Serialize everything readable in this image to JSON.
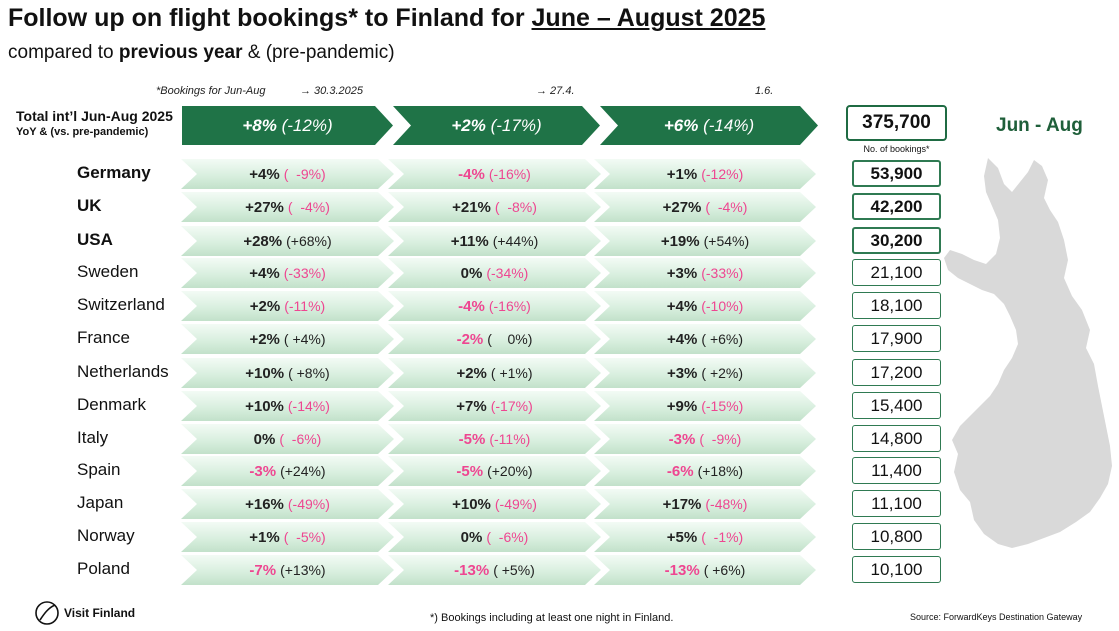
{
  "title": {
    "prefix": "Follow up on flight bookings* to Finland for ",
    "period": "June – August 2025"
  },
  "subtitle": {
    "pre": "compared to ",
    "bold": "previous year",
    "post": " & (pre-pandemic)"
  },
  "date_notes": [
    "*Bookings for Jun-Aug",
    "→ 30.3.2025",
    "→ 27.4.",
    "1.6."
  ],
  "total_label": {
    "line1": "Total int’l Jun-Aug 2025",
    "line2": "YoY & (vs. pre-pandemic)"
  },
  "bookings_label": "No. of bookings*",
  "season_label": "Jun - Aug",
  "footnote": "*) Bookings including at least one night in Finland.",
  "source": "Source: ForwardKeys Destination Gateway",
  "logo_text": "Visit Finland",
  "colors": {
    "dark_green": "#1f7347",
    "negative_pink": "#ee4691",
    "box_border": "#2f7a52",
    "map_gray": "#d9d9d9"
  },
  "chart_data": {
    "type": "table",
    "periods": [
      "30.3.2025",
      "27.4.",
      "1.6."
    ],
    "total": {
      "yoy": [
        8,
        2,
        6
      ],
      "pre_pandemic": [
        -12,
        -17,
        -14
      ],
      "yoy_text": [
        "+8%",
        "+2%",
        "+6%"
      ],
      "pre_text": [
        "(-12%)",
        "(-17%)",
        "(-14%)"
      ],
      "bookings": "375,700"
    },
    "rows": [
      {
        "country": "Germany",
        "bold": true,
        "bookings": "53,900",
        "cells": [
          {
            "yoy": "+4%",
            "pre": "(  -9%)"
          },
          {
            "yoy": "-4%",
            "pre": "(-16%)"
          },
          {
            "yoy": "+1%",
            "pre": "(-12%)"
          }
        ]
      },
      {
        "country": "UK",
        "bold": true,
        "bookings": "42,200",
        "cells": [
          {
            "yoy": "+27%",
            "pre": "(  -4%)"
          },
          {
            "yoy": "+21%",
            "pre": "(  -8%)"
          },
          {
            "yoy": "+27%",
            "pre": "(  -4%)"
          }
        ]
      },
      {
        "country": "USA",
        "bold": true,
        "bookings": "30,200",
        "cells": [
          {
            "yoy": "+28%",
            "pre": "(+68%)"
          },
          {
            "yoy": "+11%",
            "pre": "(+44%)"
          },
          {
            "yoy": "+19%",
            "pre": "(+54%)"
          }
        ]
      },
      {
        "country": "Sweden",
        "bold": false,
        "bookings": "21,100",
        "cells": [
          {
            "yoy": "+4%",
            "pre": "(-33%)"
          },
          {
            "yoy": "0%",
            "pre": "(-34%)"
          },
          {
            "yoy": "+3%",
            "pre": "(-33%)"
          }
        ]
      },
      {
        "country": "Switzerland",
        "bold": false,
        "bookings": "18,100",
        "cells": [
          {
            "yoy": "+2%",
            "pre": "(-11%)"
          },
          {
            "yoy": "-4%",
            "pre": "(-16%)"
          },
          {
            "yoy": "+4%",
            "pre": "(-10%)"
          }
        ]
      },
      {
        "country": "France",
        "bold": false,
        "bookings": "17,900",
        "cells": [
          {
            "yoy": "+2%",
            "pre": "( +4%)"
          },
          {
            "yoy": "-2%",
            "pre": "(    0%)"
          },
          {
            "yoy": "+4%",
            "pre": "( +6%)"
          }
        ]
      },
      {
        "country": "Netherlands",
        "bold": false,
        "bookings": "17,200",
        "cells": [
          {
            "yoy": "+10%",
            "pre": "( +8%)"
          },
          {
            "yoy": "+2%",
            "pre": "( +1%)"
          },
          {
            "yoy": "+3%",
            "pre": "( +2%)"
          }
        ]
      },
      {
        "country": "Denmark",
        "bold": false,
        "bookings": "15,400",
        "cells": [
          {
            "yoy": "+10%",
            "pre": "(-14%)"
          },
          {
            "yoy": "+7%",
            "pre": "(-17%)"
          },
          {
            "yoy": "+9%",
            "pre": "(-15%)"
          }
        ]
      },
      {
        "country": "Italy",
        "bold": false,
        "bookings": "14,800",
        "cells": [
          {
            "yoy": "0%",
            "pre": "(  -6%)"
          },
          {
            "yoy": "-5%",
            "pre": "(-11%)"
          },
          {
            "yoy": "-3%",
            "pre": "(  -9%)"
          }
        ]
      },
      {
        "country": "Spain",
        "bold": false,
        "bookings": "11,400",
        "cells": [
          {
            "yoy": "-3%",
            "pre": "(+24%)"
          },
          {
            "yoy": "-5%",
            "pre": "(+20%)"
          },
          {
            "yoy": "-6%",
            "pre": "(+18%)"
          }
        ]
      },
      {
        "country": "Japan",
        "bold": false,
        "bookings": "11,100",
        "cells": [
          {
            "yoy": "+16%",
            "pre": "(-49%)"
          },
          {
            "yoy": "+10%",
            "pre": "(-49%)"
          },
          {
            "yoy": "+17%",
            "pre": "(-48%)"
          }
        ]
      },
      {
        "country": "Norway",
        "bold": false,
        "bookings": "10,800",
        "cells": [
          {
            "yoy": "+1%",
            "pre": "(  -5%)"
          },
          {
            "yoy": "0%",
            "pre": "(  -6%)"
          },
          {
            "yoy": "+5%",
            "pre": "(  -1%)"
          }
        ]
      },
      {
        "country": "Poland",
        "bold": false,
        "bookings": "10,100",
        "cells": [
          {
            "yoy": "-7%",
            "pre": "(+13%)"
          },
          {
            "yoy": "-13%",
            "pre": "( +5%)"
          },
          {
            "yoy": "-13%",
            "pre": "( +6%)"
          }
        ]
      }
    ]
  }
}
